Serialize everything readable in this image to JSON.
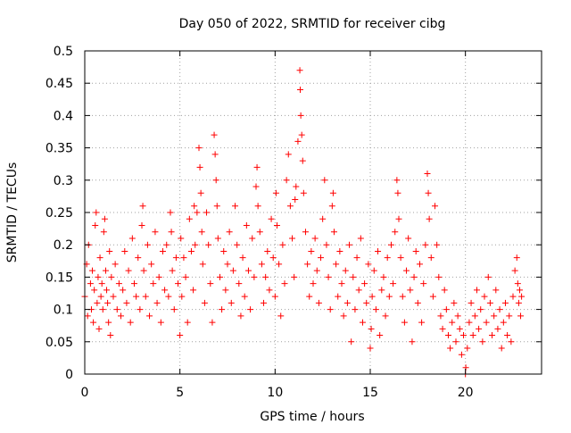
{
  "chart_data": {
    "type": "scatter",
    "title": "Day 050 of 2022, SRMTID for receiver cibg",
    "xlabel": "GPS time / hours",
    "ylabel": "SRMTID / TECUs",
    "xlim": [
      0,
      24
    ],
    "ylim": [
      0,
      0.5
    ],
    "xticks": [
      0,
      5,
      10,
      15,
      20
    ],
    "xtick_labels": [
      "0",
      "5",
      "10",
      "15",
      "20"
    ],
    "yticks": [
      0,
      0.05,
      0.1,
      0.15,
      0.2,
      0.25,
      0.3,
      0.35,
      0.4,
      0.45,
      0.5
    ],
    "ytick_labels": [
      "0",
      "0.05",
      "0.1",
      "0.15",
      "0.2",
      "0.25",
      "0.3",
      "0.35",
      "0.4",
      "0.45",
      "0.5"
    ],
    "grid": true,
    "marker": "+",
    "marker_color": "#ff0000",
    "series": [
      {
        "name": "SRMTID",
        "points": [
          [
            0.0,
            0.12
          ],
          [
            0.1,
            0.17
          ],
          [
            0.15,
            0.09
          ],
          [
            0.2,
            0.2
          ],
          [
            0.3,
            0.14
          ],
          [
            0.35,
            0.1
          ],
          [
            0.4,
            0.16
          ],
          [
            0.45,
            0.08
          ],
          [
            0.5,
            0.13
          ],
          [
            0.55,
            0.23
          ],
          [
            0.6,
            0.25
          ],
          [
            0.65,
            0.11
          ],
          [
            0.7,
            0.15
          ],
          [
            0.75,
            0.07
          ],
          [
            0.8,
            0.18
          ],
          [
            0.85,
            0.12
          ],
          [
            0.9,
            0.14
          ],
          [
            0.95,
            0.1
          ],
          [
            1.0,
            0.22
          ],
          [
            1.05,
            0.24
          ],
          [
            1.1,
            0.16
          ],
          [
            1.15,
            0.13
          ],
          [
            1.2,
            0.11
          ],
          [
            1.25,
            0.08
          ],
          [
            1.3,
            0.19
          ],
          [
            1.35,
            0.06
          ],
          [
            1.4,
            0.15
          ],
          [
            1.5,
            0.12
          ],
          [
            1.6,
            0.17
          ],
          [
            1.7,
            0.1
          ],
          [
            1.8,
            0.14
          ],
          [
            1.9,
            0.09
          ],
          [
            2.0,
            0.13
          ],
          [
            2.1,
            0.19
          ],
          [
            2.2,
            0.11
          ],
          [
            2.3,
            0.16
          ],
          [
            2.4,
            0.08
          ],
          [
            2.5,
            0.21
          ],
          [
            2.6,
            0.14
          ],
          [
            2.7,
            0.12
          ],
          [
            2.8,
            0.18
          ],
          [
            2.9,
            0.1
          ],
          [
            3.0,
            0.23
          ],
          [
            3.05,
            0.26
          ],
          [
            3.1,
            0.16
          ],
          [
            3.2,
            0.12
          ],
          [
            3.3,
            0.2
          ],
          [
            3.4,
            0.09
          ],
          [
            3.5,
            0.17
          ],
          [
            3.6,
            0.14
          ],
          [
            3.7,
            0.22
          ],
          [
            3.8,
            0.11
          ],
          [
            3.9,
            0.15
          ],
          [
            4.0,
            0.08
          ],
          [
            4.1,
            0.19
          ],
          [
            4.2,
            0.13
          ],
          [
            4.3,
            0.2
          ],
          [
            4.4,
            0.12
          ],
          [
            4.5,
            0.25
          ],
          [
            4.55,
            0.22
          ],
          [
            4.6,
            0.16
          ],
          [
            4.7,
            0.1
          ],
          [
            4.8,
            0.18
          ],
          [
            4.9,
            0.14
          ],
          [
            5.0,
            0.06
          ],
          [
            5.05,
            0.21
          ],
          [
            5.1,
            0.12
          ],
          [
            5.2,
            0.18
          ],
          [
            5.3,
            0.15
          ],
          [
            5.4,
            0.08
          ],
          [
            5.5,
            0.24
          ],
          [
            5.6,
            0.19
          ],
          [
            5.7,
            0.13
          ],
          [
            5.75,
            0.26
          ],
          [
            5.8,
            0.2
          ],
          [
            5.9,
            0.25
          ],
          [
            6.0,
            0.35
          ],
          [
            6.05,
            0.32
          ],
          [
            6.1,
            0.28
          ],
          [
            6.15,
            0.22
          ],
          [
            6.2,
            0.17
          ],
          [
            6.3,
            0.11
          ],
          [
            6.4,
            0.25
          ],
          [
            6.5,
            0.2
          ],
          [
            6.6,
            0.14
          ],
          [
            6.7,
            0.08
          ],
          [
            6.8,
            0.37
          ],
          [
            6.85,
            0.34
          ],
          [
            6.9,
            0.3
          ],
          [
            6.95,
            0.26
          ],
          [
            7.0,
            0.21
          ],
          [
            7.1,
            0.15
          ],
          [
            7.2,
            0.1
          ],
          [
            7.3,
            0.19
          ],
          [
            7.4,
            0.13
          ],
          [
            7.5,
            0.17
          ],
          [
            7.6,
            0.22
          ],
          [
            7.7,
            0.11
          ],
          [
            7.8,
            0.16
          ],
          [
            7.9,
            0.26
          ],
          [
            8.0,
            0.2
          ],
          [
            8.1,
            0.14
          ],
          [
            8.2,
            0.09
          ],
          [
            8.3,
            0.18
          ],
          [
            8.4,
            0.12
          ],
          [
            8.5,
            0.23
          ],
          [
            8.6,
            0.16
          ],
          [
            8.7,
            0.1
          ],
          [
            8.8,
            0.21
          ],
          [
            8.9,
            0.15
          ],
          [
            9.0,
            0.29
          ],
          [
            9.05,
            0.32
          ],
          [
            9.1,
            0.26
          ],
          [
            9.2,
            0.22
          ],
          [
            9.3,
            0.17
          ],
          [
            9.4,
            0.11
          ],
          [
            9.5,
            0.15
          ],
          [
            9.6,
            0.19
          ],
          [
            9.7,
            0.13
          ],
          [
            9.8,
            0.24
          ],
          [
            9.9,
            0.18
          ],
          [
            10.0,
            0.12
          ],
          [
            10.05,
            0.28
          ],
          [
            10.1,
            0.23
          ],
          [
            10.2,
            0.17
          ],
          [
            10.3,
            0.09
          ],
          [
            10.4,
            0.2
          ],
          [
            10.5,
            0.14
          ],
          [
            10.6,
            0.3
          ],
          [
            10.7,
            0.34
          ],
          [
            10.8,
            0.26
          ],
          [
            10.9,
            0.21
          ],
          [
            11.0,
            0.15
          ],
          [
            11.05,
            0.27
          ],
          [
            11.1,
            0.29
          ],
          [
            11.2,
            0.36
          ],
          [
            11.3,
            0.47
          ],
          [
            11.32,
            0.44
          ],
          [
            11.35,
            0.4
          ],
          [
            11.4,
            0.37
          ],
          [
            11.45,
            0.33
          ],
          [
            11.5,
            0.28
          ],
          [
            11.6,
            0.22
          ],
          [
            11.7,
            0.17
          ],
          [
            11.8,
            0.12
          ],
          [
            11.9,
            0.19
          ],
          [
            12.0,
            0.14
          ],
          [
            12.1,
            0.21
          ],
          [
            12.2,
            0.16
          ],
          [
            12.3,
            0.11
          ],
          [
            12.4,
            0.18
          ],
          [
            12.5,
            0.24
          ],
          [
            12.6,
            0.3
          ],
          [
            12.7,
            0.2
          ],
          [
            12.8,
            0.15
          ],
          [
            12.9,
            0.1
          ],
          [
            13.0,
            0.26
          ],
          [
            13.05,
            0.28
          ],
          [
            13.1,
            0.22
          ],
          [
            13.2,
            0.17
          ],
          [
            13.3,
            0.12
          ],
          [
            13.4,
            0.19
          ],
          [
            13.5,
            0.14
          ],
          [
            13.6,
            0.09
          ],
          [
            13.7,
            0.16
          ],
          [
            13.8,
            0.11
          ],
          [
            13.9,
            0.2
          ],
          [
            14.0,
            0.05
          ],
          [
            14.1,
            0.15
          ],
          [
            14.2,
            0.1
          ],
          [
            14.3,
            0.18
          ],
          [
            14.4,
            0.13
          ],
          [
            14.5,
            0.21
          ],
          [
            14.6,
            0.08
          ],
          [
            14.7,
            0.14
          ],
          [
            14.8,
            0.11
          ],
          [
            14.9,
            0.17
          ],
          [
            15.0,
            0.04
          ],
          [
            15.05,
            0.07
          ],
          [
            15.1,
            0.12
          ],
          [
            15.2,
            0.16
          ],
          [
            15.3,
            0.1
          ],
          [
            15.4,
            0.19
          ],
          [
            15.5,
            0.06
          ],
          [
            15.6,
            0.13
          ],
          [
            15.7,
            0.15
          ],
          [
            15.8,
            0.09
          ],
          [
            15.9,
            0.18
          ],
          [
            16.0,
            0.12
          ],
          [
            16.1,
            0.2
          ],
          [
            16.2,
            0.14
          ],
          [
            16.3,
            0.22
          ],
          [
            16.4,
            0.3
          ],
          [
            16.45,
            0.28
          ],
          [
            16.5,
            0.24
          ],
          [
            16.6,
            0.18
          ],
          [
            16.7,
            0.12
          ],
          [
            16.8,
            0.08
          ],
          [
            16.9,
            0.16
          ],
          [
            17.0,
            0.21
          ],
          [
            17.1,
            0.13
          ],
          [
            17.2,
            0.05
          ],
          [
            17.3,
            0.15
          ],
          [
            17.4,
            0.19
          ],
          [
            17.5,
            0.11
          ],
          [
            17.6,
            0.17
          ],
          [
            17.7,
            0.08
          ],
          [
            17.8,
            0.14
          ],
          [
            17.9,
            0.2
          ],
          [
            18.0,
            0.31
          ],
          [
            18.05,
            0.28
          ],
          [
            18.1,
            0.24
          ],
          [
            18.2,
            0.18
          ],
          [
            18.3,
            0.12
          ],
          [
            18.4,
            0.26
          ],
          [
            18.5,
            0.2
          ],
          [
            18.6,
            0.15
          ],
          [
            18.7,
            0.09
          ],
          [
            18.8,
            0.07
          ],
          [
            18.9,
            0.13
          ],
          [
            19.0,
            0.1
          ],
          [
            19.1,
            0.06
          ],
          [
            19.2,
            0.04
          ],
          [
            19.3,
            0.08
          ],
          [
            19.4,
            0.11
          ],
          [
            19.5,
            0.05
          ],
          [
            19.6,
            0.09
          ],
          [
            19.7,
            0.07
          ],
          [
            19.8,
            0.03
          ],
          [
            19.9,
            0.06
          ],
          [
            20.0,
            0.0
          ],
          [
            20.02,
            0.01
          ],
          [
            20.1,
            0.04
          ],
          [
            20.2,
            0.08
          ],
          [
            20.3,
            0.11
          ],
          [
            20.4,
            0.06
          ],
          [
            20.5,
            0.09
          ],
          [
            20.6,
            0.13
          ],
          [
            20.7,
            0.07
          ],
          [
            20.8,
            0.1
          ],
          [
            20.9,
            0.05
          ],
          [
            21.0,
            0.12
          ],
          [
            21.1,
            0.08
          ],
          [
            21.2,
            0.15
          ],
          [
            21.3,
            0.11
          ],
          [
            21.4,
            0.06
          ],
          [
            21.5,
            0.09
          ],
          [
            21.6,
            0.13
          ],
          [
            21.7,
            0.07
          ],
          [
            21.8,
            0.1
          ],
          [
            21.9,
            0.04
          ],
          [
            22.0,
            0.08
          ],
          [
            22.1,
            0.11
          ],
          [
            22.2,
            0.06
          ],
          [
            22.3,
            0.09
          ],
          [
            22.4,
            0.05
          ],
          [
            22.5,
            0.12
          ],
          [
            22.6,
            0.16
          ],
          [
            22.7,
            0.18
          ],
          [
            22.75,
            0.14
          ],
          [
            22.8,
            0.11
          ],
          [
            22.85,
            0.13
          ],
          [
            22.9,
            0.09
          ],
          [
            22.95,
            0.12
          ]
        ]
      }
    ]
  }
}
